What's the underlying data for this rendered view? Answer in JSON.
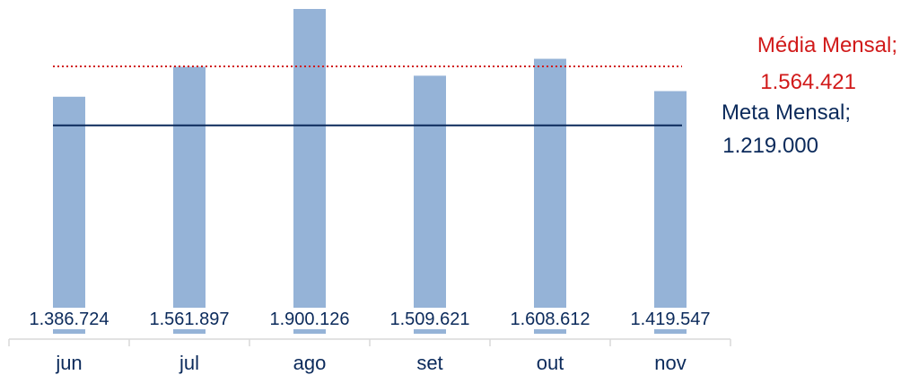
{
  "chart_data": {
    "type": "bar",
    "categories": [
      "jun",
      "jul",
      "ago",
      "set",
      "out",
      "nov"
    ],
    "values": [
      1386724,
      1561897,
      1900126,
      1509621,
      1608612,
      1419547
    ],
    "value_labels": [
      "1.386.724",
      "1.561.897",
      "1.900.126",
      "1.509.621",
      "1.608.612",
      "1.419.547"
    ],
    "bar_color": "#95b3d7",
    "reference_lines": [
      {
        "label": "Média Mensal;",
        "value_text": "1.564.421",
        "value": 1564421,
        "style": "dotted",
        "color": "#d11a1a"
      },
      {
        "label": "Meta Mensal;",
        "value_text": "1.219.000",
        "value": 1219000,
        "style": "solid",
        "color": "#0b2a5b"
      }
    ],
    "legend": "none",
    "grid": false
  }
}
